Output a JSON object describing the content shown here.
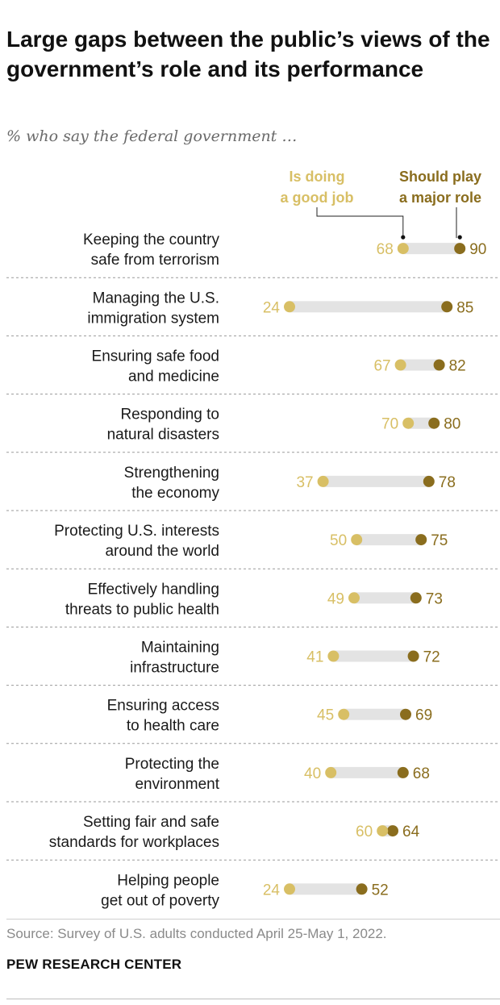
{
  "header": {
    "title": "Large gaps between the public’s views of the government’s role and its performance",
    "subtitle": "% who say the federal government …"
  },
  "footer": {
    "source": "Source: Survey of U.S. adults conducted April 25-May 1, 2022.",
    "org": "PEW RESEARCH CENTER"
  },
  "colors": {
    "good_job": "#d8bf65",
    "major_role": "#8a6d1e",
    "bar": "#e3e3e3",
    "label": "#1a1a1a",
    "divider": "#9a9a9a"
  },
  "chart_data": {
    "type": "dot",
    "series": [
      {
        "name": "Is doing a good job",
        "legend_lines": [
          "Is doing",
          "a good job"
        ],
        "values": [
          68,
          24,
          67,
          70,
          37,
          50,
          49,
          41,
          45,
          40,
          60,
          24
        ]
      },
      {
        "name": "Should play a major role",
        "legend_lines": [
          "Should play",
          "a major role"
        ],
        "values": [
          90,
          85,
          82,
          80,
          78,
          75,
          73,
          72,
          69,
          68,
          64,
          52
        ]
      }
    ],
    "categories": [
      [
        "Keeping the country",
        "safe from terrorism"
      ],
      [
        "Managing the U.S.",
        "immigration system"
      ],
      [
        "Ensuring safe food",
        "and medicine"
      ],
      [
        "Responding to",
        "natural disasters"
      ],
      [
        "Strengthening",
        "the economy"
      ],
      [
        "Protecting U.S. interests",
        "around the world"
      ],
      [
        "Effectively handling",
        "threats to public health"
      ],
      [
        "Maintaining",
        "infrastructure"
      ],
      [
        "Ensuring access",
        "to health care"
      ],
      [
        "Protecting the",
        "environment"
      ],
      [
        "Setting fair and safe",
        "standards for workplaces"
      ],
      [
        "Helping people",
        "get out of poverty"
      ]
    ],
    "legend_placement": "top",
    "grid": false
  }
}
